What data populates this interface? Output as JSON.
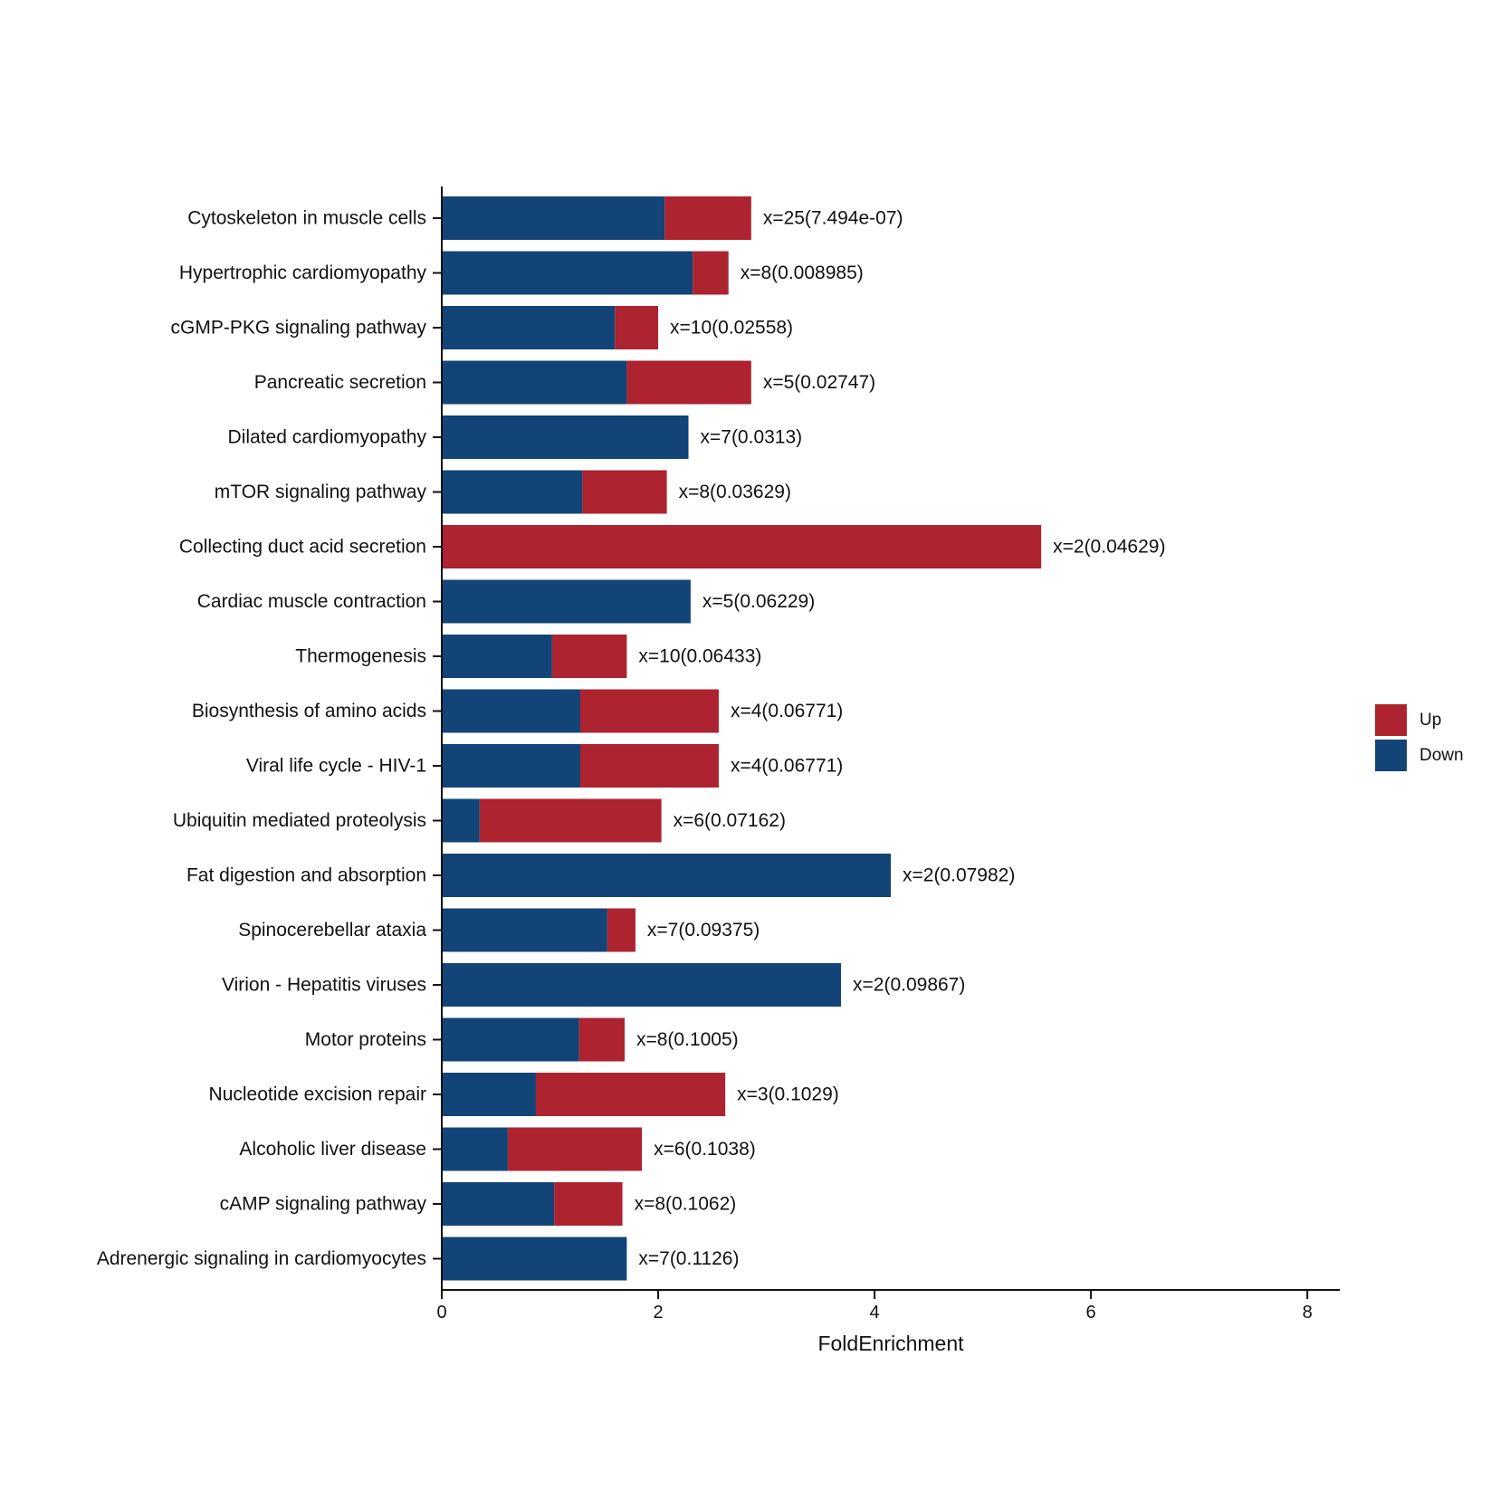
{
  "chart_data": {
    "type": "bar",
    "orientation": "horizontal",
    "stacked": true,
    "categories": [
      "Cytoskeleton in muscle cells",
      "Hypertrophic cardiomyopathy",
      "cGMP-PKG signaling pathway",
      "Pancreatic secretion",
      "Dilated cardiomyopathy",
      "mTOR signaling pathway",
      "Collecting duct acid secretion",
      "Cardiac muscle contraction",
      "Thermogenesis",
      "Biosynthesis of amino acids",
      "Viral life cycle - HIV-1",
      "Ubiquitin mediated proteolysis",
      "Fat digestion and absorption",
      "Spinocerebellar ataxia",
      "Virion - Hepatitis viruses",
      "Motor proteins",
      "Nucleotide excision repair",
      "Alcoholic liver disease",
      "cAMP signaling pathway",
      "Adrenergic signaling in cardiomyocytes"
    ],
    "series": [
      {
        "name": "Down",
        "color": "#134477",
        "values": [
          2.06,
          2.32,
          1.6,
          1.71,
          2.28,
          1.3,
          0.0,
          2.3,
          1.02,
          1.28,
          1.28,
          0.35,
          4.15,
          1.53,
          3.69,
          1.27,
          0.87,
          0.61,
          1.04,
          1.71
        ]
      },
      {
        "name": "Up",
        "color": "#ad2330",
        "values": [
          0.8,
          0.33,
          0.4,
          1.15,
          0.0,
          0.78,
          5.54,
          0.0,
          0.69,
          1.28,
          1.28,
          1.68,
          0.0,
          0.26,
          0.0,
          0.42,
          1.75,
          1.24,
          0.63,
          0.0
        ]
      }
    ],
    "bar_labels": [
      "x=25(7.494e-07)",
      "x=8(0.008985)",
      "x=10(0.02558)",
      "x=5(0.02747)",
      "x=7(0.0313)",
      "x=8(0.03629)",
      "x=2(0.04629)",
      "x=5(0.06229)",
      "x=10(0.06433)",
      "x=4(0.06771)",
      "x=4(0.06771)",
      "x=6(0.07162)",
      "x=2(0.07982)",
      "x=7(0.09375)",
      "x=2(0.09867)",
      "x=8(0.1005)",
      "x=3(0.1029)",
      "x=6(0.1038)",
      "x=8(0.1062)",
      "x=7(0.1126)"
    ],
    "xlabel": "FoldEnrichment",
    "ylabel": "",
    "xlim": [
      0,
      8.3
    ],
    "xticks": [
      0,
      2,
      4,
      6,
      8
    ],
    "grid": false,
    "legend": {
      "position": "right",
      "entries": [
        {
          "label": "Up",
          "color": "#ad2330"
        },
        {
          "label": "Down",
          "color": "#134477"
        }
      ]
    }
  }
}
